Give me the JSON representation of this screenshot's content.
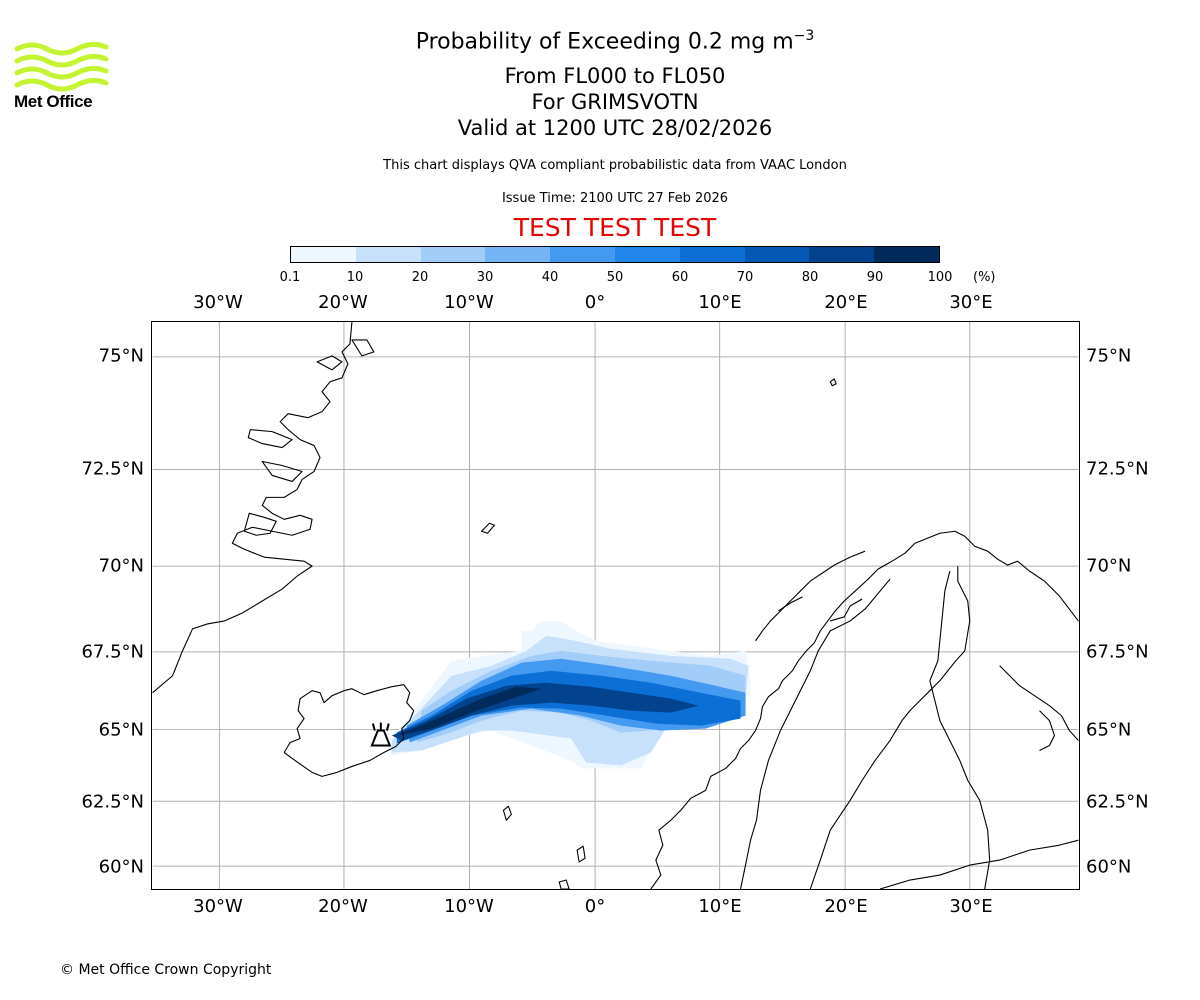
{
  "logo": {
    "text": "Met Office",
    "color": "#c4f431"
  },
  "title": {
    "line1_prefix": "Probability of Exceeding 0.2 mg m",
    "line1_exp": "−3",
    "line2": "From FL000 to FL050",
    "line3": "For GRIMSVOTN",
    "line4": "Valid at 1200 UTC 28/02/2026"
  },
  "subtitle": "This chart displays QVA compliant probabilistic data from VAAC London",
  "issue_time": "Issue Time: 2100 UTC 27 Feb 2026",
  "test_banner": "TEST TEST TEST",
  "test_color": "#e60000",
  "colorbar": {
    "ticks": [
      "0.1",
      "10",
      "20",
      "30",
      "40",
      "50",
      "60",
      "70",
      "80",
      "90",
      "100"
    ],
    "unit": "(%)",
    "colors": [
      "#eef6fe",
      "#c7e1fb",
      "#a2cdf8",
      "#74b5f5",
      "#4499f0",
      "#2086ea",
      "#0b6fd6",
      "#0558b4",
      "#03428c",
      "#022a5a"
    ]
  },
  "axes": {
    "lon_labels": [
      "30°W",
      "20°W",
      "10°W",
      "0°",
      "10°E",
      "20°E",
      "30°E"
    ],
    "lat_labels": [
      "75°N",
      "72.5°N",
      "70°N",
      "67.5°N",
      "65°N",
      "62.5°N",
      "60°N"
    ]
  },
  "volcano": {
    "name": "Grimsvotn",
    "icon": "volcano-icon"
  },
  "copyright": "© Met Office Crown Copyright"
}
